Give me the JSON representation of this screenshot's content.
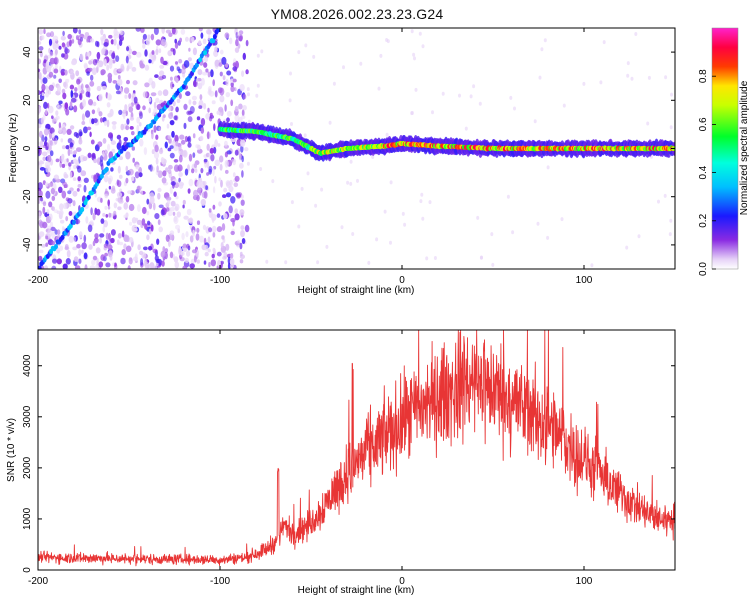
{
  "title": "YM08.2026.002.23.23.G24",
  "chart_data": [
    {
      "type": "heatmap",
      "name": "spectrogram",
      "xlabel": "Height of straight line (km)",
      "ylabel": "Frequency (Hz)",
      "xlim": [
        -200,
        150
      ],
      "ylim": [
        -50,
        50
      ],
      "xticks": [
        -200,
        -100,
        0,
        100
      ],
      "xtick_labels": [
        "-200",
        "-100",
        "0",
        "100"
      ],
      "yticks": [
        -40,
        -20,
        0,
        20,
        40
      ],
      "ytick_labels": [
        "-40",
        "-20",
        "0",
        "20",
        "40"
      ],
      "colorbar": {
        "label": "Normalized spectral amplitude",
        "range": [
          0,
          1
        ],
        "ticks": [
          0.0,
          0.2,
          0.4,
          0.6,
          0.8
        ],
        "tick_labels": [
          "0.0",
          "0.2",
          "0.4",
          "0.6",
          "0.8"
        ],
        "colormap": "rainbow (white-violet-blue-cyan-green-yellow-red-magenta)"
      },
      "features": [
        {
          "name": "main-tone",
          "description": "near-horizontal ridge around 0 Hz",
          "x_range": [
            -100,
            150
          ],
          "freq_points": [
            [
              -100,
              8
            ],
            [
              -80,
              7
            ],
            [
              -60,
              4
            ],
            [
              -45,
              -2
            ],
            [
              -30,
              0
            ],
            [
              -10,
              1
            ],
            [
              0,
              2
            ],
            [
              20,
              1
            ],
            [
              50,
              0
            ],
            [
              100,
              0
            ],
            [
              150,
              0
            ]
          ]
        },
        {
          "name": "diagonal-streak",
          "description": "diagonal streak rising through the noisy region",
          "points": [
            [
              -200,
              -50
            ],
            [
              -180,
              -30
            ],
            [
              -160,
              -5
            ],
            [
              -140,
              8
            ],
            [
              -120,
              26
            ],
            [
              -100,
              50
            ]
          ]
        }
      ]
    },
    {
      "type": "line",
      "name": "snr",
      "xlabel": "Height of straight line (km)",
      "ylabel": "SNR (10 * v/v)",
      "xlim": [
        -200,
        150
      ],
      "ylim": [
        0,
        4700
      ],
      "xticks": [
        -200,
        -100,
        0,
        100
      ],
      "xtick_labels": [
        "-200",
        "-100",
        "0",
        "100"
      ],
      "yticks": [
        0,
        1000,
        2000,
        3000,
        4000
      ],
      "ytick_labels": [
        "0",
        "1000",
        "2000",
        "3000",
        "4000"
      ],
      "color": "#e83535",
      "envelope": {
        "x": [
          -200,
          -150,
          -100,
          -85,
          -75,
          -68,
          -65,
          -60,
          -50,
          -40,
          -30,
          -20,
          -10,
          0,
          10,
          20,
          30,
          40,
          50,
          60,
          70,
          80,
          90,
          100,
          110,
          120,
          130,
          140,
          150
        ],
        "mean": [
          250,
          220,
          200,
          250,
          400,
          600,
          900,
          700,
          900,
          1400,
          1900,
          2300,
          2600,
          2900,
          3200,
          3400,
          3550,
          3600,
          3550,
          3350,
          3100,
          2800,
          2500,
          2150,
          1800,
          1500,
          1200,
          1000,
          1000
        ],
        "peaks": [
          {
            "x": -68,
            "y": 2000
          },
          {
            "x": -27,
            "y": 4100
          },
          {
            "x": 34,
            "y": 4650
          },
          {
            "x": 45,
            "y": 4550
          }
        ]
      }
    }
  ]
}
